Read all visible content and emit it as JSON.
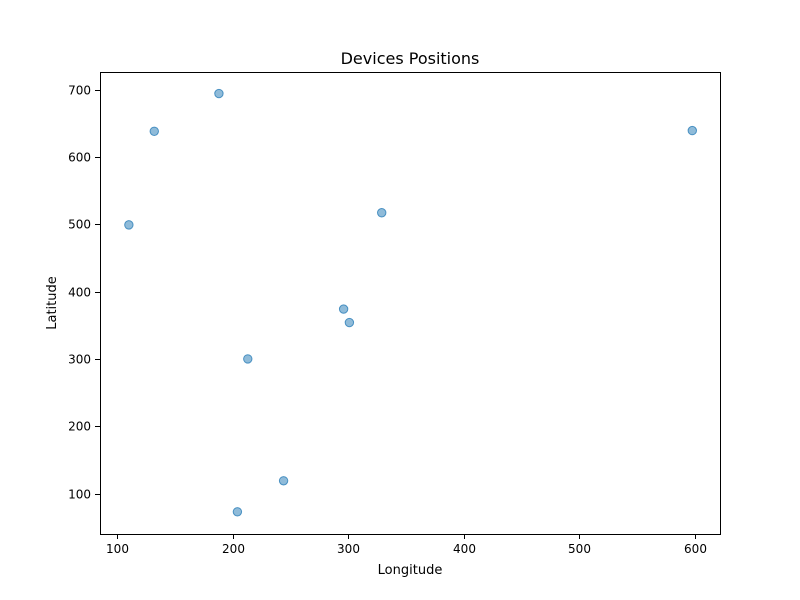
{
  "chart_data": {
    "type": "scatter",
    "title": "Devices Positions",
    "xlabel": "Longitude",
    "ylabel": "Latitude",
    "xlim": [
      85,
      622
    ],
    "ylim": [
      40,
      726
    ],
    "xticks": [
      100,
      200,
      300,
      400,
      500,
      600
    ],
    "yticks": [
      100,
      200,
      300,
      400,
      500,
      600,
      700
    ],
    "grid": false,
    "legend": "none",
    "marker_color": "#1f77b4",
    "marker_alpha": 0.5,
    "points": [
      {
        "x": 188,
        "y": 694
      },
      {
        "x": 132,
        "y": 638
      },
      {
        "x": 598,
        "y": 639
      },
      {
        "x": 110,
        "y": 499
      },
      {
        "x": 329,
        "y": 517
      },
      {
        "x": 296,
        "y": 374
      },
      {
        "x": 301,
        "y": 354
      },
      {
        "x": 213,
        "y": 300
      },
      {
        "x": 244,
        "y": 119
      },
      {
        "x": 204,
        "y": 73
      }
    ]
  }
}
